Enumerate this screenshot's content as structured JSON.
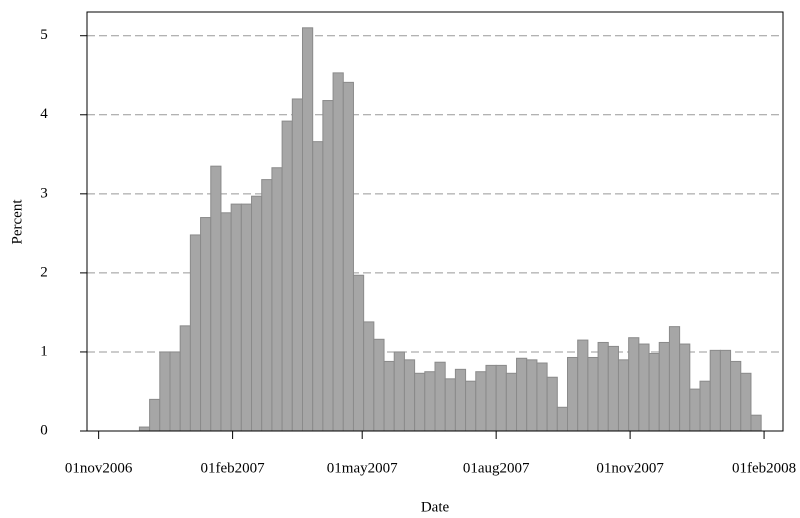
{
  "chart_data": {
    "type": "histogram",
    "x_label": "Date",
    "y_label": "Percent",
    "bins": [
      17134,
      17141,
      17148,
      17155,
      17162,
      17169,
      17176,
      17183,
      17190,
      17197,
      17204,
      17211,
      17218,
      17225,
      17232,
      17239,
      17246,
      17253,
      17260,
      17267,
      17274,
      17281,
      17288,
      17295,
      17302,
      17309,
      17316,
      17323,
      17330,
      17337,
      17344,
      17351,
      17358,
      17365,
      17372,
      17379,
      17386,
      17393,
      17400,
      17407,
      17414,
      17421,
      17428,
      17435,
      17442,
      17449,
      17456,
      17463,
      17470,
      17477,
      17484,
      17491,
      17498,
      17505,
      17512,
      17519,
      17526,
      17533,
      17540,
      17547,
      17554,
      17561
    ],
    "values": [
      0.05,
      0.4,
      1.0,
      1.0,
      1.33,
      2.48,
      2.7,
      3.35,
      2.76,
      2.87,
      2.87,
      2.97,
      3.18,
      3.33,
      3.92,
      4.2,
      5.1,
      3.66,
      4.18,
      4.53,
      4.41,
      1.97,
      1.38,
      1.16,
      0.88,
      1.0,
      0.9,
      0.73,
      0.75,
      0.87,
      0.66,
      0.78,
      0.63,
      0.75,
      0.83,
      0.83,
      0.73,
      0.92,
      0.9,
      0.86,
      0.68,
      0.3,
      0.93,
      1.15,
      0.93,
      1.12,
      1.07,
      0.9,
      1.18,
      1.1,
      0.98,
      1.12,
      1.32,
      1.1,
      0.53,
      0.63,
      1.02,
      1.02,
      0.88,
      0.73,
      0.2
    ],
    "color": "#a6a6a6",
    "xlim": [
      17098,
      17576
    ],
    "ylim": [
      0,
      5.3
    ],
    "xticks": [
      {
        "value": 17106,
        "label": "01nov2006"
      },
      {
        "value": 17198,
        "label": "01feb2007"
      },
      {
        "value": 17287,
        "label": "01may2007"
      },
      {
        "value": 17379,
        "label": "01aug2007"
      },
      {
        "value": 17471,
        "label": "01nov2007"
      },
      {
        "value": 17563,
        "label": "01feb2008"
      }
    ],
    "yticks": [
      0,
      1,
      2,
      3,
      4,
      5
    ],
    "grid": true
  }
}
